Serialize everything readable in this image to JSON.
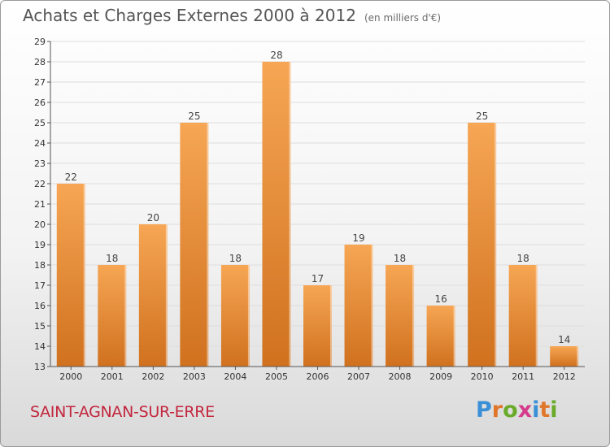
{
  "header": {
    "title": "Achats et Charges Externes 2000 à 2012",
    "unit": "(en milliers d'€)"
  },
  "footer": {
    "town": "SAINT-AGNAN-SUR-ERRE",
    "logo": "Proxiti",
    "logo_colors": [
      "#3a8fd6",
      "#e0762a",
      "#6aaa2b",
      "#d43b8c",
      "#3a8fd6",
      "#e0762a",
      "#6aaa2b"
    ]
  },
  "colors": {
    "bar_top": "#f6a654",
    "bar_bottom": "#d0711e",
    "grid": "#dddddd",
    "axis": "#555555",
    "town": "#c2263d"
  },
  "chart_data": {
    "type": "bar",
    "title": "Achats et Charges Externes 2000 à 2012",
    "subtitle": "(en milliers d'€)",
    "categories": [
      "2000",
      "2001",
      "2002",
      "2003",
      "2004",
      "2005",
      "2006",
      "2007",
      "2008",
      "2009",
      "2010",
      "2011",
      "2012"
    ],
    "values": [
      22,
      18,
      20,
      25,
      18,
      28,
      17,
      19,
      18,
      16,
      25,
      18,
      14
    ],
    "ylim": [
      13,
      29
    ],
    "yticks": [
      13,
      14,
      15,
      16,
      17,
      18,
      19,
      20,
      21,
      22,
      23,
      24,
      25,
      26,
      27,
      28,
      29
    ],
    "grid": true,
    "legend": "none"
  }
}
